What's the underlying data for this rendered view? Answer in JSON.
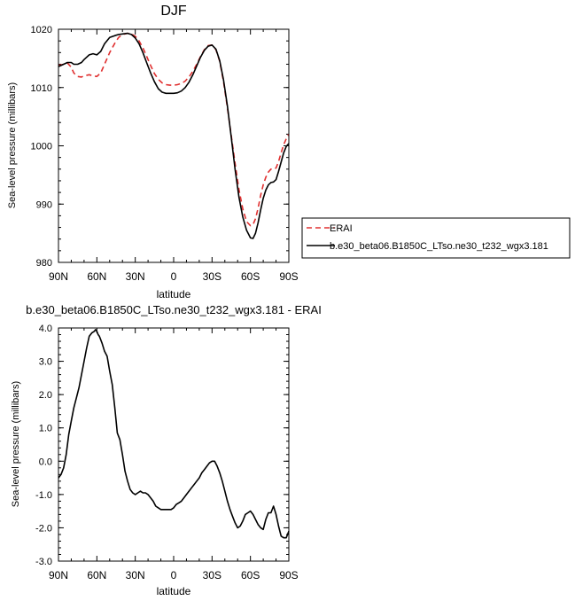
{
  "chart_data": [
    {
      "type": "line",
      "title": "DJF",
      "xlabel": "latitude",
      "ylabel": "Sea-level pressure (millibars)",
      "xlim": [
        90,
        -90
      ],
      "ylim": [
        980,
        1020
      ],
      "xticks": [
        90,
        60,
        30,
        0,
        -30,
        -60,
        -90
      ],
      "xtick_labels": [
        "90N",
        "60N",
        "30N",
        "0",
        "30S",
        "60S",
        "90S"
      ],
      "yticks": [
        980,
        990,
        1000,
        1010,
        1020
      ],
      "ytick_labels": [
        "980",
        "990",
        "1000",
        "1010",
        "1020"
      ],
      "legend_position": "right",
      "series": [
        {
          "name": "ERAI",
          "color": "#e03030",
          "dash": "dashed",
          "x": [
            90,
            86,
            83,
            80,
            78,
            75,
            72,
            70,
            66,
            63,
            60,
            57,
            54,
            50,
            46,
            43,
            40,
            36,
            33,
            30,
            27,
            24,
            21,
            18,
            15,
            12,
            9,
            6,
            3,
            0,
            -3,
            -6,
            -9,
            -12,
            -15,
            -18,
            -21,
            -24,
            -27,
            -30,
            -33,
            -36,
            -39,
            -42,
            -45,
            -48,
            -51,
            -54,
            -57,
            -60,
            -62,
            -64,
            -66,
            -68,
            -70,
            -72,
            -74,
            -76,
            -78,
            -80,
            -82,
            -84,
            -86,
            -88,
            -90
          ],
          "y": [
            1013.8,
            1014.0,
            1014.2,
            1013.5,
            1012.5,
            1011.9,
            1011.8,
            1012.0,
            1012.2,
            1012.0,
            1011.9,
            1012.5,
            1014.0,
            1016.0,
            1017.6,
            1018.6,
            1019.1,
            1019.3,
            1019.2,
            1018.8,
            1018.0,
            1016.8,
            1015.3,
            1013.8,
            1012.4,
            1011.4,
            1010.8,
            1010.5,
            1010.4,
            1010.4,
            1010.5,
            1010.7,
            1011.1,
            1011.8,
            1012.8,
            1014.0,
            1015.3,
            1016.5,
            1017.2,
            1017.3,
            1016.5,
            1014.5,
            1011.0,
            1006.5,
            1001.8,
            997.0,
            992.5,
            989.2,
            987.0,
            986.3,
            986.5,
            987.5,
            989.3,
            991.5,
            993.3,
            994.6,
            995.5,
            996.0,
            996.0,
            996.2,
            997.3,
            998.8,
            1000.2,
            1001.2,
            1002.0
          ]
        },
        {
          "name": "b.e30_beta06.B1850C_LTso.ne30_t232_wgx3.181",
          "color": "#000000",
          "dash": "solid",
          "x": [
            90,
            86,
            83,
            80,
            78,
            75,
            72,
            70,
            66,
            63,
            60,
            57,
            54,
            50,
            46,
            43,
            40,
            36,
            33,
            30,
            27,
            24,
            21,
            18,
            15,
            12,
            9,
            6,
            3,
            0,
            -3,
            -6,
            -9,
            -12,
            -15,
            -18,
            -21,
            -24,
            -27,
            -30,
            -33,
            -36,
            -39,
            -42,
            -45,
            -48,
            -51,
            -54,
            -57,
            -60,
            -62,
            -64,
            -66,
            -68,
            -70,
            -72,
            -74,
            -76,
            -78,
            -80,
            -82,
            -84,
            -86,
            -88,
            -90
          ],
          "y": [
            1013.6,
            1014.0,
            1014.3,
            1014.3,
            1014.0,
            1014.0,
            1014.3,
            1014.8,
            1015.6,
            1015.8,
            1015.6,
            1016.2,
            1017.5,
            1018.6,
            1018.9,
            1019.1,
            1019.2,
            1019.3,
            1019.1,
            1018.5,
            1017.5,
            1016.0,
            1014.2,
            1012.5,
            1011.0,
            1009.8,
            1009.2,
            1009.0,
            1009.0,
            1009.0,
            1009.1,
            1009.4,
            1010.0,
            1010.9,
            1012.2,
            1013.7,
            1015.2,
            1016.4,
            1017.1,
            1017.3,
            1016.6,
            1014.6,
            1011.3,
            1006.8,
            1001.5,
            996.0,
            991.2,
            987.8,
            985.5,
            984.2,
            984.1,
            985.0,
            986.8,
            989.0,
            991.0,
            992.4,
            993.3,
            993.7,
            993.8,
            994.2,
            995.6,
            997.2,
            998.8,
            999.9,
            1000.4
          ]
        }
      ]
    },
    {
      "type": "line",
      "title": "b.e30_beta06.B1850C_LTso.ne30_t232_wgx3.181 - ERAI",
      "xlabel": "latitude",
      "ylabel": "Sea-level pressure (millibars)",
      "xlim": [
        90,
        -90
      ],
      "ylim": [
        -3.0,
        4.0
      ],
      "xticks": [
        90,
        60,
        30,
        0,
        -30,
        -60,
        -90
      ],
      "xtick_labels": [
        "90N",
        "60N",
        "30N",
        "0",
        "30S",
        "60S",
        "90S"
      ],
      "yticks": [
        -3.0,
        -2.0,
        -1.0,
        0.0,
        1.0,
        2.0,
        3.0,
        4.0
      ],
      "ytick_labels": [
        "-3.0",
        "-2.0",
        "-1.0",
        "0.0",
        "1.0",
        "2.0",
        "3.0",
        "4.0"
      ],
      "series": [
        {
          "name": "",
          "color": "#000000",
          "dash": "solid",
          "x": [
            90,
            88,
            86,
            84,
            82,
            80,
            78,
            76,
            74,
            72,
            70,
            68,
            66,
            64,
            62,
            61,
            60,
            59,
            58,
            56,
            54,
            52,
            50,
            48,
            46,
            44,
            42,
            40,
            38,
            36,
            34,
            32,
            30,
            28,
            26,
            24,
            22,
            20,
            18,
            16,
            14,
            12,
            10,
            8,
            6,
            4,
            2,
            0,
            -2,
            -4,
            -6,
            -8,
            -10,
            -12,
            -14,
            -16,
            -18,
            -20,
            -22,
            -24,
            -26,
            -28,
            -30,
            -32,
            -34,
            -36,
            -38,
            -40,
            -42,
            -44,
            -46,
            -48,
            -50,
            -52,
            -54,
            -56,
            -58,
            -60,
            -62,
            -64,
            -66,
            -68,
            -70,
            -72,
            -74,
            -76,
            -78,
            -80,
            -82,
            -84,
            -86,
            -88,
            -90
          ],
          "y": [
            -0.5,
            -0.4,
            -0.2,
            0.2,
            0.8,
            1.2,
            1.6,
            1.9,
            2.2,
            2.6,
            3.0,
            3.4,
            3.75,
            3.85,
            3.9,
            3.95,
            3.9,
            3.8,
            3.75,
            3.55,
            3.3,
            3.15,
            2.7,
            2.3,
            1.6,
            0.85,
            0.65,
            0.2,
            -0.3,
            -0.6,
            -0.85,
            -0.95,
            -1.0,
            -0.95,
            -0.9,
            -0.95,
            -0.95,
            -1.0,
            -1.1,
            -1.2,
            -1.35,
            -1.4,
            -1.45,
            -1.45,
            -1.45,
            -1.45,
            -1.45,
            -1.4,
            -1.3,
            -1.25,
            -1.2,
            -1.1,
            -1.0,
            -0.9,
            -0.8,
            -0.7,
            -0.6,
            -0.5,
            -0.35,
            -0.25,
            -0.15,
            -0.05,
            0.0,
            0.0,
            -0.15,
            -0.35,
            -0.6,
            -0.9,
            -1.2,
            -1.45,
            -1.65,
            -1.85,
            -2.0,
            -1.95,
            -1.8,
            -1.6,
            -1.55,
            -1.5,
            -1.6,
            -1.75,
            -1.9,
            -2.0,
            -2.05,
            -1.75,
            -1.55,
            -1.55,
            -1.35,
            -1.6,
            -1.95,
            -2.25,
            -2.3,
            -2.3,
            -2.1
          ]
        }
      ]
    }
  ]
}
